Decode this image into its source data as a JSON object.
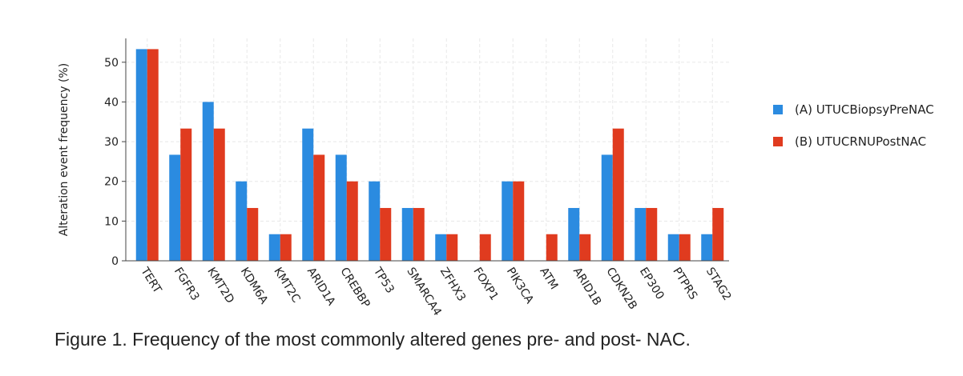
{
  "chart_data": {
    "type": "bar",
    "ylabel": "Alteration event frequency (%)",
    "caption": "Figure 1. Frequency of the most commonly altered genes pre- and post- NAC.",
    "categories": [
      "TERT",
      "FGFR3",
      "KMT2D",
      "KDM6A",
      "KMT2C",
      "ARID1A",
      "CREBBP",
      "TP53",
      "SMARCA4",
      "ZFHX3",
      "FOXP1",
      "PIK3CA",
      "ATM",
      "ARID1B",
      "CDKN2B",
      "EP300",
      "PTPRS",
      "STAG2"
    ],
    "series": [
      {
        "name": "(A) UTUCBiopsyPreNAC",
        "color": "#2b8be0",
        "values": [
          53.3,
          26.7,
          40,
          20,
          6.7,
          33.3,
          26.7,
          20,
          13.3,
          6.7,
          0,
          20,
          0,
          13.3,
          26.7,
          13.3,
          6.7,
          6.7
        ]
      },
      {
        "name": "(B) UTUCRNUPostNAC",
        "color": "#e03b1f",
        "values": [
          53.3,
          33.3,
          33.3,
          13.3,
          6.7,
          26.7,
          20,
          13.3,
          13.3,
          6.7,
          6.7,
          20,
          6.7,
          6.7,
          33.3,
          13.3,
          6.7,
          13.3
        ]
      }
    ],
    "ylim": [
      0,
      56
    ],
    "yticks": [
      0,
      10,
      20,
      30,
      40,
      50
    ],
    "grid": true,
    "legend": "right"
  }
}
